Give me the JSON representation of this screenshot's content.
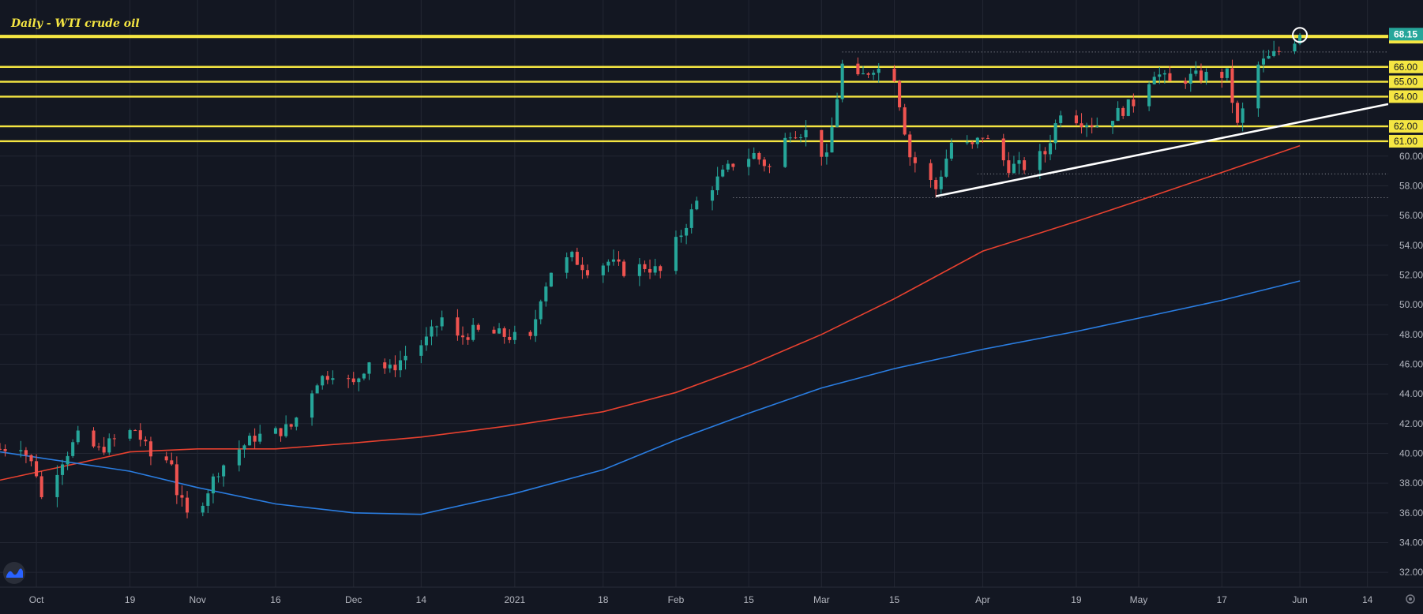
{
  "colors": {
    "background": "#131722",
    "grid": "#232733",
    "axis_text": "#b2b5be",
    "up": "#26a69a",
    "down": "#ef5350",
    "level_line": "#f5e642",
    "ma_fast": "#e8412f",
    "ma_slow": "#2a7de1",
    "trendline": "#ffffff",
    "last_price_bg": "#26a69a",
    "level_label_bg": "#f5e642"
  },
  "chart_data": {
    "type": "candlestick",
    "title": "Daily - WTI crude oil",
    "ylim": [
      31,
      70.5
    ],
    "y_ticks": [
      32,
      34,
      36,
      38,
      40,
      42,
      44,
      46,
      48,
      50,
      52,
      54,
      56,
      58,
      60
    ],
    "y_tick_labels": [
      "32.00",
      "34.00",
      "36.00",
      "38.00",
      "40.00",
      "42.00",
      "44.00",
      "46.00",
      "48.00",
      "50.00",
      "52.00",
      "54.00",
      "56.00",
      "58.00",
      "60.00"
    ],
    "x_range": [
      "2020-09-24",
      "2021-06-18"
    ],
    "x_ticks": [
      {
        "date": "2020-10-01",
        "label": "Oct"
      },
      {
        "date": "2020-10-19",
        "label": "19"
      },
      {
        "date": "2020-11-01",
        "label": "Nov"
      },
      {
        "date": "2020-11-16",
        "label": "16"
      },
      {
        "date": "2020-12-01",
        "label": "Dec"
      },
      {
        "date": "2020-12-14",
        "label": "14"
      },
      {
        "date": "2021-01-01",
        "label": "2021"
      },
      {
        "date": "2021-01-18",
        "label": "18"
      },
      {
        "date": "2021-02-01",
        "label": "Feb"
      },
      {
        "date": "2021-02-15",
        "label": "15"
      },
      {
        "date": "2021-03-01",
        "label": "Mar"
      },
      {
        "date": "2021-03-15",
        "label": "15"
      },
      {
        "date": "2021-04-01",
        "label": "Apr"
      },
      {
        "date": "2021-04-19",
        "label": "19"
      },
      {
        "date": "2021-05-01",
        "label": "May"
      },
      {
        "date": "2021-05-17",
        "label": "17"
      },
      {
        "date": "2021-06-01",
        "label": "Jun"
      },
      {
        "date": "2021-06-14",
        "label": "14"
      }
    ],
    "levels": [
      {
        "value": 68.0,
        "label": "68.00"
      },
      {
        "value": 66.0,
        "label": "66.00"
      },
      {
        "value": 65.0,
        "label": "65.00"
      },
      {
        "value": 64.0,
        "label": "64.00"
      },
      {
        "value": 62.0,
        "label": "62.00"
      },
      {
        "value": 61.0,
        "label": "61.00"
      }
    ],
    "last_price": {
      "value": 68.15,
      "label": "68.15"
    },
    "dotted_levels": [
      {
        "value": 67.0,
        "from": "2021-03-05",
        "to": "2021-06-18"
      },
      {
        "value": 58.8,
        "from": "2021-03-31",
        "to": "2021-06-18"
      },
      {
        "value": 57.2,
        "from": "2021-02-12",
        "to": "2021-06-18"
      }
    ],
    "trendline": [
      {
        "date": "2021-03-23",
        "value": 57.3
      },
      {
        "date": "2021-06-18",
        "value": 63.5
      }
    ],
    "ma_fast": [
      {
        "date": "2020-09-24",
        "value": 38.2
      },
      {
        "date": "2020-10-19",
        "value": 40.1
      },
      {
        "date": "2020-11-01",
        "value": 40.3
      },
      {
        "date": "2020-11-16",
        "value": 40.3
      },
      {
        "date": "2020-12-01",
        "value": 40.7
      },
      {
        "date": "2020-12-14",
        "value": 41.1
      },
      {
        "date": "2021-01-01",
        "value": 41.9
      },
      {
        "date": "2021-01-18",
        "value": 42.8
      },
      {
        "date": "2021-02-01",
        "value": 44.1
      },
      {
        "date": "2021-02-15",
        "value": 45.9
      },
      {
        "date": "2021-03-01",
        "value": 48.0
      },
      {
        "date": "2021-03-15",
        "value": 50.4
      },
      {
        "date": "2021-04-01",
        "value": 53.6
      },
      {
        "date": "2021-04-19",
        "value": 55.6
      },
      {
        "date": "2021-05-01",
        "value": 57.0
      },
      {
        "date": "2021-05-17",
        "value": 58.9
      },
      {
        "date": "2021-06-01",
        "value": 60.7
      }
    ],
    "ma_slow": [
      {
        "date": "2020-09-24",
        "value": 40.1
      },
      {
        "date": "2020-10-19",
        "value": 38.8
      },
      {
        "date": "2020-11-01",
        "value": 37.7
      },
      {
        "date": "2020-11-16",
        "value": 36.6
      },
      {
        "date": "2020-12-01",
        "value": 36.0
      },
      {
        "date": "2020-12-14",
        "value": 35.9
      },
      {
        "date": "2021-01-01",
        "value": 37.3
      },
      {
        "date": "2021-01-18",
        "value": 38.9
      },
      {
        "date": "2021-02-01",
        "value": 40.9
      },
      {
        "date": "2021-02-15",
        "value": 42.7
      },
      {
        "date": "2021-03-01",
        "value": 44.4
      },
      {
        "date": "2021-03-15",
        "value": 45.7
      },
      {
        "date": "2021-04-01",
        "value": 47.0
      },
      {
        "date": "2021-04-19",
        "value": 48.2
      },
      {
        "date": "2021-05-01",
        "value": 49.1
      },
      {
        "date": "2021-05-17",
        "value": 50.3
      },
      {
        "date": "2021-06-01",
        "value": 51.6
      }
    ],
    "closes": [
      {
        "date": "2020-09-24",
        "value": 40.3
      },
      {
        "date": "2020-09-28",
        "value": 40.6
      },
      {
        "date": "2020-10-01",
        "value": 38.7
      },
      {
        "date": "2020-10-02",
        "value": 37.0
      },
      {
        "date": "2020-10-06",
        "value": 39.6
      },
      {
        "date": "2020-10-09",
        "value": 41.1
      },
      {
        "date": "2020-10-13",
        "value": 40.2
      },
      {
        "date": "2020-10-16",
        "value": 40.9
      },
      {
        "date": "2020-10-20",
        "value": 41.6
      },
      {
        "date": "2020-10-23",
        "value": 39.8
      },
      {
        "date": "2020-10-27",
        "value": 39.5
      },
      {
        "date": "2020-10-28",
        "value": 37.4
      },
      {
        "date": "2020-10-30",
        "value": 35.8
      },
      {
        "date": "2020-11-02",
        "value": 36.9
      },
      {
        "date": "2020-11-05",
        "value": 38.9
      },
      {
        "date": "2020-11-09",
        "value": 40.3
      },
      {
        "date": "2020-11-12",
        "value": 41.1
      },
      {
        "date": "2020-11-16",
        "value": 41.4
      },
      {
        "date": "2020-11-19",
        "value": 41.8
      },
      {
        "date": "2020-11-24",
        "value": 44.9
      },
      {
        "date": "2020-11-27",
        "value": 45.5
      },
      {
        "date": "2020-12-01",
        "value": 44.6
      },
      {
        "date": "2020-12-04",
        "value": 46.3
      },
      {
        "date": "2020-12-08",
        "value": 45.6
      },
      {
        "date": "2020-12-11",
        "value": 46.6
      },
      {
        "date": "2020-12-15",
        "value": 47.6
      },
      {
        "date": "2020-12-18",
        "value": 49.1
      },
      {
        "date": "2020-12-21",
        "value": 47.7
      },
      {
        "date": "2020-12-24",
        "value": 48.2
      },
      {
        "date": "2020-12-29",
        "value": 48.0
      },
      {
        "date": "2021-01-04",
        "value": 47.6
      },
      {
        "date": "2021-01-06",
        "value": 50.6
      },
      {
        "date": "2021-01-08",
        "value": 52.3
      },
      {
        "date": "2021-01-12",
        "value": 53.2
      },
      {
        "date": "2021-01-15",
        "value": 52.4
      },
      {
        "date": "2021-01-19",
        "value": 52.9
      },
      {
        "date": "2021-01-22",
        "value": 52.3
      },
      {
        "date": "2021-01-26",
        "value": 52.6
      },
      {
        "date": "2021-01-29",
        "value": 52.2
      },
      {
        "date": "2021-02-02",
        "value": 54.8
      },
      {
        "date": "2021-02-05",
        "value": 56.9
      },
      {
        "date": "2021-02-09",
        "value": 58.4
      },
      {
        "date": "2021-02-12",
        "value": 59.5
      },
      {
        "date": "2021-02-16",
        "value": 60.1
      },
      {
        "date": "2021-02-19",
        "value": 59.2
      },
      {
        "date": "2021-02-23",
        "value": 61.7
      },
      {
        "date": "2021-02-26",
        "value": 61.6
      },
      {
        "date": "2021-03-02",
        "value": 59.8
      },
      {
        "date": "2021-03-05",
        "value": 66.1
      },
      {
        "date": "2021-03-08",
        "value": 65.1
      },
      {
        "date": "2021-03-11",
        "value": 66.0
      },
      {
        "date": "2021-03-15",
        "value": 65.4
      },
      {
        "date": "2021-03-18",
        "value": 60.0
      },
      {
        "date": "2021-03-23",
        "value": 57.8
      },
      {
        "date": "2021-03-26",
        "value": 60.9
      },
      {
        "date": "2021-03-30",
        "value": 60.6
      },
      {
        "date": "2021-04-01",
        "value": 61.4
      },
      {
        "date": "2021-04-06",
        "value": 59.3
      },
      {
        "date": "2021-04-09",
        "value": 59.3
      },
      {
        "date": "2021-04-13",
        "value": 60.2
      },
      {
        "date": "2021-04-16",
        "value": 63.1
      },
      {
        "date": "2021-04-20",
        "value": 62.4
      },
      {
        "date": "2021-04-23",
        "value": 62.1
      },
      {
        "date": "2021-04-27",
        "value": 62.9
      },
      {
        "date": "2021-04-30",
        "value": 63.6
      },
      {
        "date": "2021-05-04",
        "value": 65.7
      },
      {
        "date": "2021-05-07",
        "value": 64.9
      },
      {
        "date": "2021-05-11",
        "value": 65.3
      },
      {
        "date": "2021-05-14",
        "value": 65.4
      },
      {
        "date": "2021-05-18",
        "value": 65.5
      },
      {
        "date": "2021-05-20",
        "value": 62.0
      },
      {
        "date": "2021-05-24",
        "value": 66.1
      },
      {
        "date": "2021-05-27",
        "value": 66.8
      },
      {
        "date": "2021-06-01",
        "value": 68.15
      }
    ]
  }
}
